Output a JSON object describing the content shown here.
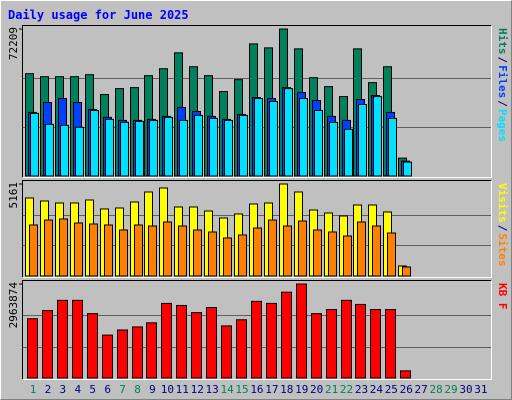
{
  "title": "Daily usage for June 2025",
  "chart_data": [
    {
      "type": "bar",
      "ylim": [
        0,
        72209
      ],
      "yticks": [
        72209
      ],
      "grid": true,
      "legend_separator": "/",
      "series": [
        {
          "name": "Hits",
          "color": "#00805c",
          "values": [
            50250,
            48790,
            48790,
            48790,
            49760,
            40010,
            42930,
            43420,
            49280,
            52690,
            60500,
            53670,
            49280,
            41470,
            47330,
            64890,
            62940,
            72209,
            62450,
            48300,
            43910,
            39030,
            62450,
            45860,
            53670,
            8780,
            0,
            0,
            0,
            0,
            0
          ]
        },
        {
          "name": "Files",
          "color": "#0040ff",
          "values": [
            31220,
            36100,
            38060,
            36100,
            32700,
            28790,
            27320,
            27320,
            27800,
            29270,
            33660,
            31710,
            29270,
            27800,
            30250,
            38540,
            38060,
            43420,
            40980,
            37080,
            29270,
            27320,
            37570,
            39520,
            31220,
            7320,
            0,
            0,
            0,
            0,
            0
          ]
        },
        {
          "name": "Pages",
          "color": "#00e0ff",
          "values": [
            30740,
            25370,
            24880,
            23910,
            32200,
            27810,
            26350,
            26830,
            27320,
            28790,
            27320,
            29760,
            28300,
            27320,
            29760,
            38060,
            36590,
            42930,
            38060,
            32200,
            26350,
            22930,
            35130,
            39030,
            28300,
            6830,
            0,
            0,
            0,
            0,
            0
          ]
        }
      ]
    },
    {
      "type": "bar",
      "ylim": [
        0,
        5161
      ],
      "yticks": [
        5161
      ],
      "grid": true,
      "legend_separator": "/",
      "series": [
        {
          "name": "Visits",
          "color": "#ffff00",
          "values": [
            4376,
            4207,
            4095,
            4095,
            4263,
            3759,
            3815,
            4151,
            4712,
            4937,
            3871,
            3871,
            3646,
            3254,
            3478,
            4039,
            4095,
            5161,
            4712,
            3702,
            3534,
            3366,
            3983,
            3983,
            3590,
            561,
            0,
            0,
            0,
            0,
            0
          ]
        },
        {
          "name": "Sites",
          "color": "#ff8000",
          "values": [
            2861,
            3141,
            3198,
            2973,
            2917,
            2861,
            2580,
            2861,
            2805,
            3029,
            2805,
            2580,
            2468,
            2132,
            2300,
            2693,
            3141,
            2805,
            3085,
            2580,
            2468,
            2244,
            3029,
            2805,
            2412,
            505,
            0,
            0,
            0,
            0,
            0
          ]
        }
      ]
    },
    {
      "type": "bar",
      "ylim": [
        0,
        2963874
      ],
      "yticks": [
        2963874
      ],
      "grid": true,
      "categories": [
        "1",
        "2",
        "3",
        "4",
        "5",
        "6",
        "7",
        "8",
        "9",
        "10",
        "11",
        "12",
        "13",
        "14",
        "15",
        "16",
        "17",
        "18",
        "19",
        "20",
        "21",
        "22",
        "23",
        "24",
        "25",
        "26",
        "27",
        "28",
        "29",
        "30",
        "31"
      ],
      "category_colors": [
        "#00805c",
        "#000080",
        "#000080",
        "#000080",
        "#000080",
        "#000080",
        "#00805c",
        "#00805c",
        "#000080",
        "#000080",
        "#000080",
        "#000080",
        "#000080",
        "#00805c",
        "#00805c",
        "#000080",
        "#000080",
        "#000080",
        "#000080",
        "#000080",
        "#00805c",
        "#00805c",
        "#000080",
        "#000080",
        "#000080",
        "#000080",
        "#000080",
        "#00805c",
        "#00805c",
        "#000080",
        "#000080"
      ],
      "series": [
        {
          "name": "KB F",
          "color": "#ff0000",
          "values": [
            1868530,
            2126260,
            2448420,
            2448420,
            2029610,
            1353070,
            1514150,
            1610800,
            1739660,
            2351770,
            2287340,
            2061820,
            2222900,
            1643020,
            1836310,
            2416200,
            2351770,
            2706140,
            2963874,
            2029610,
            2158470,
            2448420,
            2319550,
            2158470,
            2158470,
            225510,
            0,
            0,
            0,
            0,
            0
          ]
        }
      ]
    }
  ]
}
